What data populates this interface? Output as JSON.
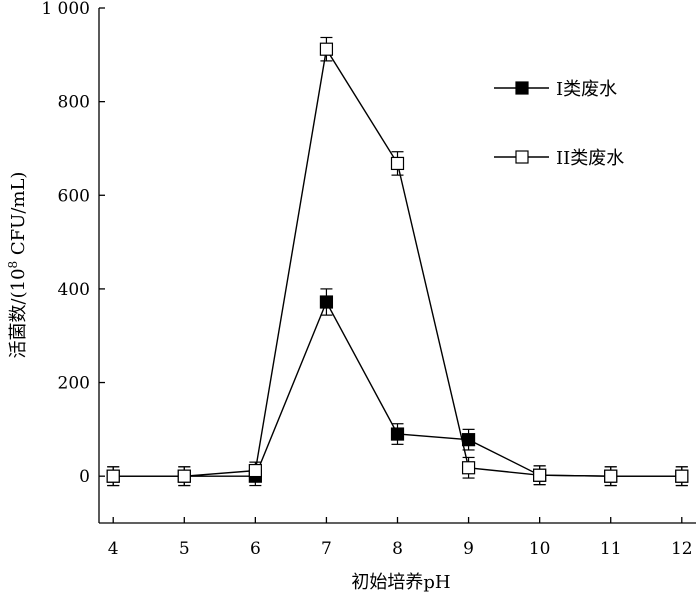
{
  "chart_data": {
    "type": "line",
    "title": "",
    "xlabel": "初始培养pH",
    "ylabel": "活菌数/(10",
    "ylabel_sup": "8",
    "ylabel_tail": " CFU/mL)",
    "x": [
      4,
      5,
      6,
      7,
      8,
      9,
      10,
      11,
      12
    ],
    "xlim": [
      3.8,
      12.2
    ],
    "ylim": [
      -100,
      1000
    ],
    "x_ticks": [
      4,
      5,
      6,
      7,
      8,
      9,
      10,
      11,
      12
    ],
    "y_ticks": [
      0,
      200,
      400,
      600,
      800,
      1000
    ],
    "y_tick_labels": [
      "0",
      "200",
      "400",
      "600",
      "800",
      "1 000"
    ],
    "grid": false,
    "legend_position": "top-right",
    "series": [
      {
        "name": "I类废水",
        "marker": "filled-square",
        "color": "#000000",
        "values": [
          0,
          0,
          0,
          372,
          90,
          78,
          2,
          0,
          0
        ],
        "errors": [
          20,
          20,
          20,
          28,
          22,
          22,
          20,
          20,
          20
        ]
      },
      {
        "name": "II类废水",
        "marker": "open-square",
        "color": "#000000",
        "values": [
          0,
          0,
          12,
          912,
          668,
          18,
          2,
          0,
          0
        ],
        "errors": [
          20,
          20,
          18,
          25,
          25,
          22,
          20,
          20,
          20
        ]
      }
    ]
  }
}
